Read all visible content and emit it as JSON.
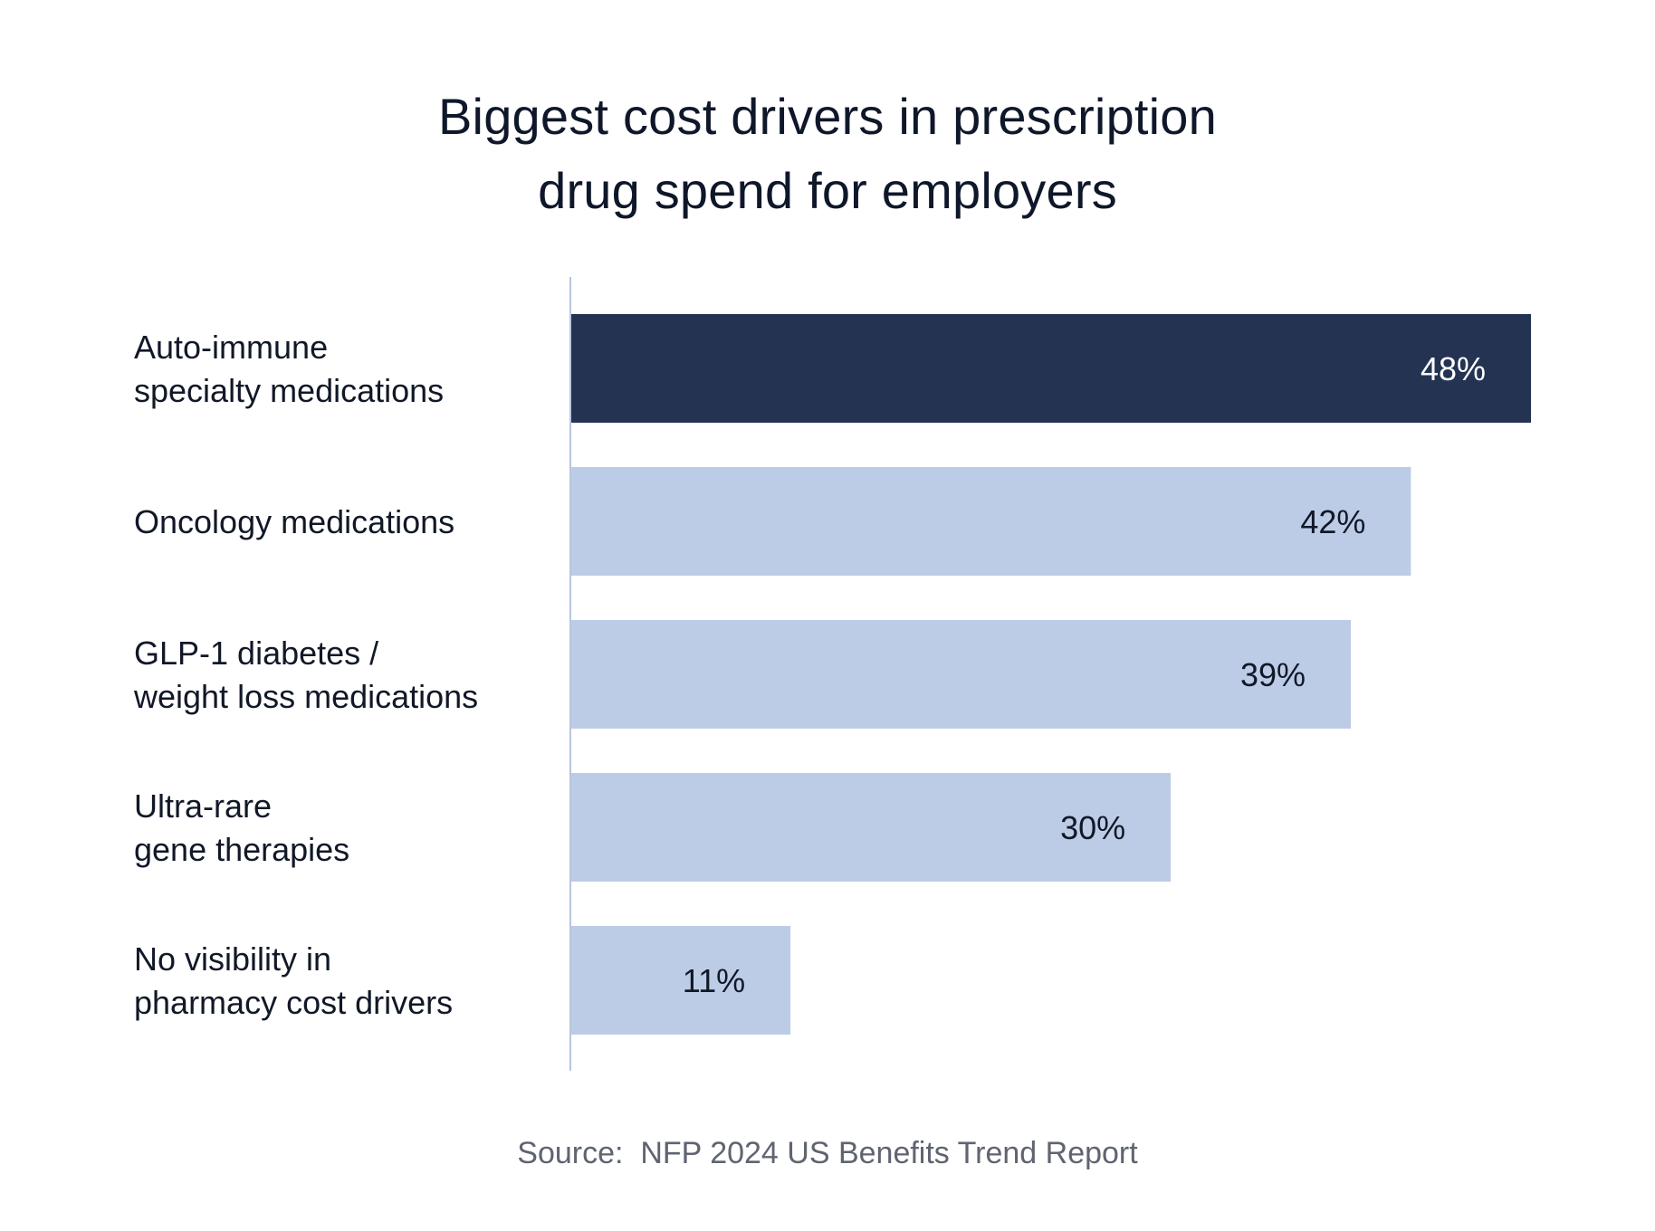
{
  "title_lines": [
    "Biggest cost drivers in prescription",
    "drug spend for employers"
  ],
  "source": "Source:  NFP 2024 US Benefits Trend Report",
  "colors": {
    "highlight": "#243352",
    "bar": "#bdcce6",
    "axis": "#b8c6dc",
    "label_text": "#111827",
    "highlight_label": "#ffffff"
  },
  "chart_data": {
    "type": "bar",
    "orientation": "horizontal",
    "title": "Biggest cost drivers in prescription drug spend for employers",
    "categories": [
      [
        "Auto-immune",
        "specialty medications"
      ],
      [
        "Oncology medications"
      ],
      [
        "GLP-1 diabetes /",
        "weight loss medications"
      ],
      [
        "Ultra-rare",
        "gene therapies"
      ],
      [
        "No visibility in",
        "pharmacy cost drivers"
      ]
    ],
    "values": [
      48,
      42,
      39,
      30,
      11
    ],
    "value_labels": [
      "48%",
      "42%",
      "39%",
      "30%",
      "11%"
    ],
    "highlighted_index": 0,
    "xlim": [
      0,
      48
    ],
    "grid": false,
    "legend": "none"
  }
}
